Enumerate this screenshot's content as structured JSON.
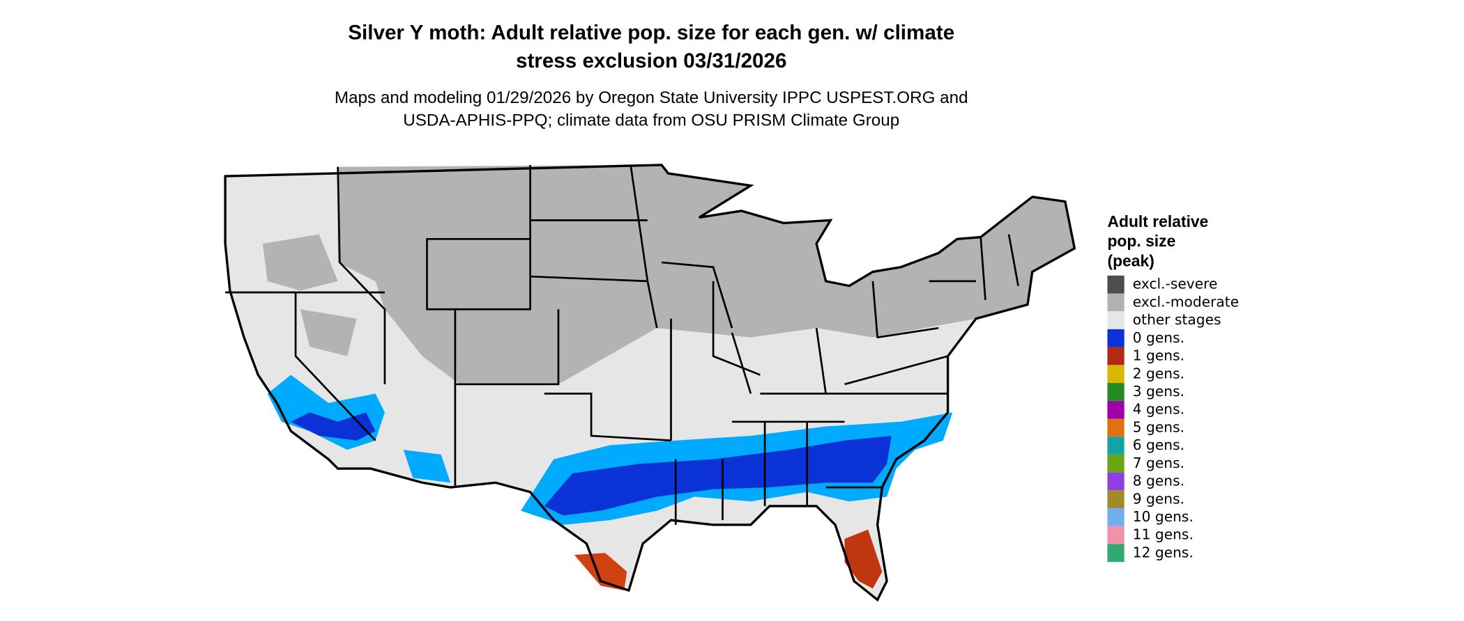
{
  "title": [
    "Silver Y moth: Adult relative pop. size for each gen. w/ climate",
    "stress exclusion 03/31/2026"
  ],
  "subtitle": [
    "Maps and modeling 01/29/2026 by Oregon State University IPPC USPEST.ORG and",
    "USDA-APHIS-PPQ; climate data from OSU PRISM Climate Group"
  ],
  "legend": {
    "title": [
      "Adult relative",
      "pop. size",
      "(peak)"
    ],
    "items": [
      {
        "label": "excl.-severe",
        "color": "#4d4d4d"
      },
      {
        "label": "excl.-moderate",
        "color": "#b3b3b3"
      },
      {
        "label": "other stages",
        "color": "#e6e6e6"
      },
      {
        "label": "0 gens.",
        "color": "#0a32d6"
      },
      {
        "label": "1 gens.",
        "color": "#b22a12"
      },
      {
        "label": "2 gens.",
        "color": "#d8b800"
      },
      {
        "label": "3 gens.",
        "color": "#238b22"
      },
      {
        "label": "4 gens.",
        "color": "#a000a8"
      },
      {
        "label": "5 gens.",
        "color": "#e07010"
      },
      {
        "label": "6 gens.",
        "color": "#12a3a3"
      },
      {
        "label": "7 gens.",
        "color": "#6aa314"
      },
      {
        "label": "8 gens.",
        "color": "#9040e0"
      },
      {
        "label": "9 gens.",
        "color": "#a08a2a"
      },
      {
        "label": "10 gens.",
        "color": "#70aef0"
      },
      {
        "label": "11 gens.",
        "color": "#f092aa"
      },
      {
        "label": "12 gens.",
        "color": "#30a872"
      }
    ]
  }
}
